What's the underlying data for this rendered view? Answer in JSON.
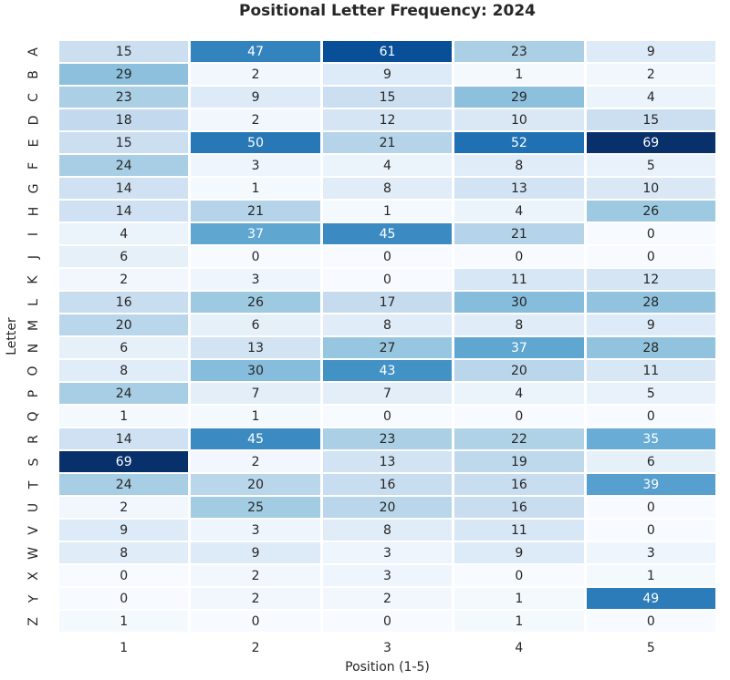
{
  "chart_data": {
    "type": "heatmap",
    "title": "Positional Letter Frequency: 2024",
    "xlabel": "Position (1-5)",
    "ylabel": "Letter",
    "x_tick_labels": [
      "1",
      "2",
      "3",
      "4",
      "5"
    ],
    "y_tick_labels": [
      "A",
      "B",
      "C",
      "D",
      "E",
      "F",
      "G",
      "H",
      "I",
      "J",
      "K",
      "L",
      "M",
      "N",
      "O",
      "P",
      "Q",
      "R",
      "S",
      "T",
      "U",
      "V",
      "W",
      "X",
      "Y",
      "Z"
    ],
    "vmin": 0,
    "vmax": 69,
    "colormap": "Blues",
    "legend_position": "none",
    "grid": "white cell separators",
    "rows": [
      [
        15,
        47,
        61,
        23,
        9
      ],
      [
        29,
        2,
        9,
        1,
        2
      ],
      [
        23,
        9,
        15,
        29,
        4
      ],
      [
        18,
        2,
        12,
        10,
        15
      ],
      [
        15,
        50,
        21,
        52,
        69
      ],
      [
        24,
        3,
        4,
        8,
        5
      ],
      [
        14,
        1,
        8,
        13,
        10
      ],
      [
        14,
        21,
        1,
        4,
        26
      ],
      [
        4,
        37,
        45,
        21,
        0
      ],
      [
        6,
        0,
        0,
        0,
        0
      ],
      [
        2,
        3,
        0,
        11,
        12
      ],
      [
        16,
        26,
        17,
        30,
        28
      ],
      [
        20,
        6,
        8,
        8,
        9
      ],
      [
        6,
        13,
        27,
        37,
        28
      ],
      [
        8,
        30,
        43,
        20,
        11
      ],
      [
        24,
        7,
        7,
        4,
        5
      ],
      [
        1,
        1,
        0,
        0,
        0
      ],
      [
        14,
        45,
        23,
        22,
        35
      ],
      [
        69,
        2,
        13,
        19,
        6
      ],
      [
        24,
        20,
        16,
        16,
        39
      ],
      [
        2,
        25,
        20,
        16,
        0
      ],
      [
        9,
        3,
        8,
        11,
        0
      ],
      [
        8,
        9,
        3,
        9,
        3
      ],
      [
        0,
        2,
        3,
        0,
        1
      ],
      [
        0,
        2,
        2,
        1,
        49
      ],
      [
        1,
        0,
        0,
        1,
        0
      ]
    ]
  },
  "colors": {
    "background": "#ffffff",
    "text_dark": "#262626",
    "annot_light": "#ffffff",
    "colormap_stops": [
      "#f7fbff",
      "#deebf7",
      "#c6dbef",
      "#9ecae1",
      "#6baed6",
      "#4292c6",
      "#2171b5",
      "#08519c",
      "#08306b"
    ]
  }
}
